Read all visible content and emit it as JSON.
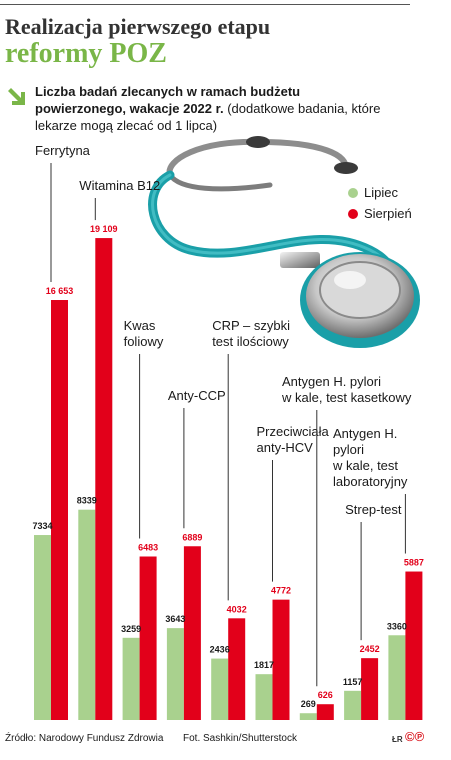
{
  "header": {
    "title_line1": "Realizacja pierwszego etapu",
    "title_line2": "reformy POZ",
    "subtitle_bold": "Liczba badań zlecanych w ramach budżetu powierzonego, wakacje 2022 r.",
    "subtitle_rest": " (dodatkowe badania, które lekarze mogą zlecać od 1 lipca)"
  },
  "legend": {
    "items": [
      "Lipiec",
      "Sierpień"
    ]
  },
  "colors": {
    "lipiec": "#a9d18e",
    "sierpien": "#e2001a",
    "accent_green": "#7ab648",
    "leader": "#333333"
  },
  "chart_data": {
    "type": "bar",
    "title": "Liczba badań zlecanych w ramach budżetu powierzonego, wakacje 2022 r.",
    "categories": [
      [
        "Ferrytyna"
      ],
      [
        "Witamina B12"
      ],
      [
        "Kwas",
        "foliowy"
      ],
      [
        "Anty-CCP"
      ],
      [
        "CRP – szybki",
        "test ilościowy"
      ],
      [
        "Przeciwciała",
        "anty-HCV"
      ],
      [
        "Antygen H. pylori",
        "w kale, test kasetkowy"
      ],
      [
        "Strep-test"
      ],
      [
        "Antygen H.",
        "pylori",
        "w kale, test",
        "laboratoryjny"
      ]
    ],
    "series": [
      {
        "name": "Lipiec",
        "values": [
          7334,
          8339,
          3259,
          3643,
          2436,
          1817,
          269,
          1157,
          3360
        ]
      },
      {
        "name": "Sierpień",
        "values": [
          16653,
          19109,
          6483,
          6889,
          4032,
          4772,
          626,
          2452,
          5887
        ]
      }
    ],
    "value_labels": {
      "lipiec": [
        "7334",
        "8339",
        "3259",
        "3643",
        "2436",
        "1817",
        "269",
        "1157",
        "3360"
      ],
      "sierpien": [
        "16 653",
        "19 109",
        "6483",
        "6889",
        "4032",
        "4772",
        "626",
        "2452",
        "5887"
      ]
    },
    "legend_position": "top-right",
    "grid": false
  },
  "footer": {
    "source": "Źródło: Narodowy Fundusz Zdrowia",
    "photo": "Fot. Sashkin/Shutterstock",
    "mark": "ŁR",
    "logo": "©℗"
  }
}
